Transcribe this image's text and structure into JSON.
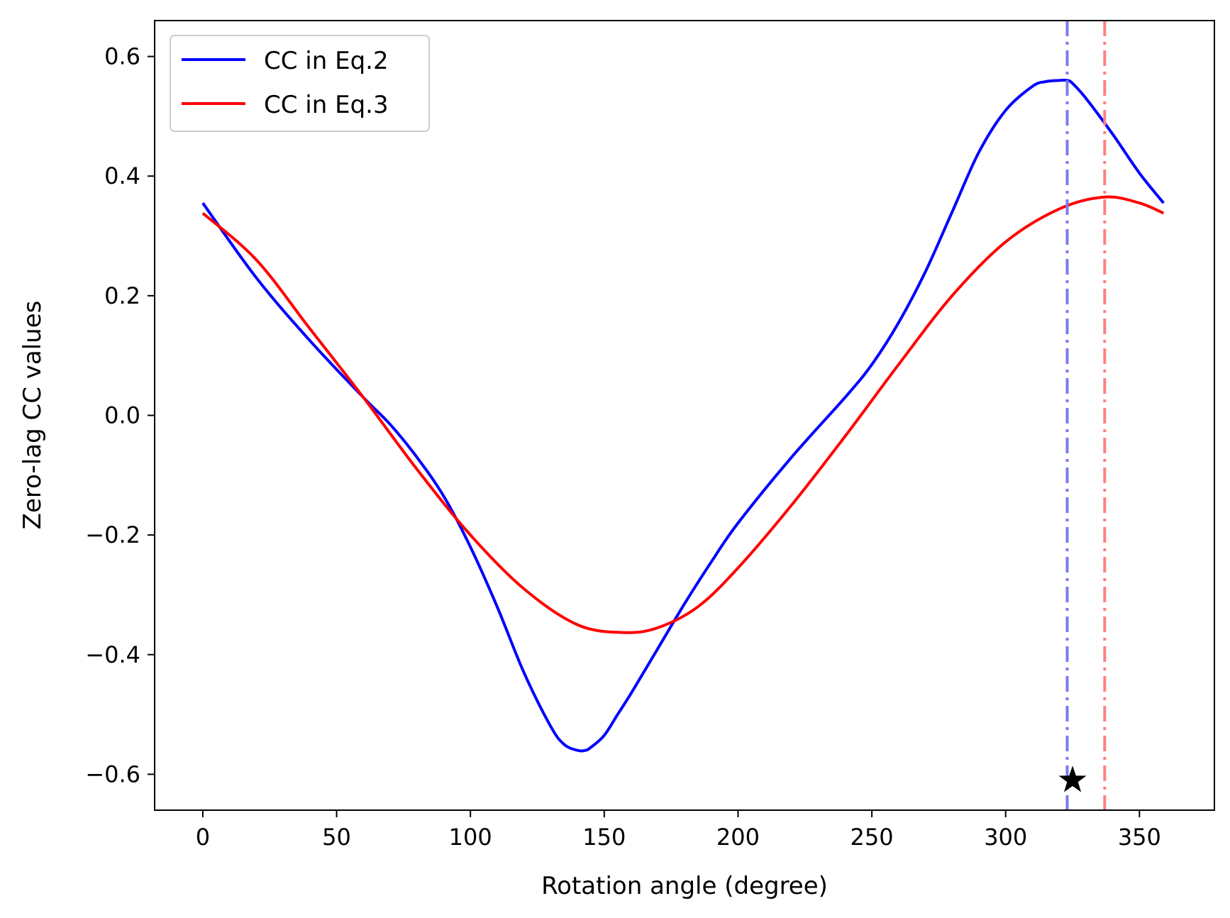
{
  "chart_data": {
    "type": "line",
    "title": "",
    "xlabel": "Rotation angle (degree)",
    "ylabel": "Zero-lag CC values",
    "xlim": [
      -18,
      378
    ],
    "ylim": [
      -0.66,
      0.66
    ],
    "xticks": [
      0,
      50,
      100,
      150,
      200,
      250,
      300,
      350
    ],
    "xtick_labels": [
      "0",
      "50",
      "100",
      "150",
      "200",
      "250",
      "300",
      "350"
    ],
    "yticks": [
      -0.6,
      -0.4,
      -0.2,
      0.0,
      0.2,
      0.4,
      0.6
    ],
    "ytick_labels": [
      "−0.6",
      "−0.4",
      "−0.2",
      "0.0",
      "0.2",
      "0.4",
      "0.6"
    ],
    "grid": false,
    "legend_position": "top-left",
    "series": [
      {
        "name": "CC in Eq.2",
        "color": "#0000ff",
        "x": [
          0,
          20,
          40,
          60,
          70,
          80,
          90,
          100,
          110,
          120,
          130,
          135,
          140,
          143,
          145,
          150,
          155,
          160,
          170,
          180,
          190,
          200,
          220,
          240,
          250,
          260,
          270,
          280,
          290,
          300,
          310,
          315,
          320,
          323,
          325,
          330,
          340,
          350,
          359
        ],
        "y": [
          0.355,
          0.23,
          0.125,
          0.03,
          -0.015,
          -0.07,
          -0.135,
          -0.22,
          -0.32,
          -0.43,
          -0.52,
          -0.55,
          -0.56,
          -0.56,
          -0.555,
          -0.535,
          -0.5,
          -0.465,
          -0.39,
          -0.315,
          -0.245,
          -0.18,
          -0.07,
          0.03,
          0.085,
          0.155,
          0.24,
          0.34,
          0.44,
          0.51,
          0.55,
          0.558,
          0.56,
          0.56,
          0.555,
          0.53,
          0.47,
          0.405,
          0.355
        ]
      },
      {
        "name": "CC in Eq.3",
        "color": "#ff0000",
        "x": [
          0,
          20,
          40,
          60,
          80,
          100,
          120,
          140,
          157,
          170,
          185,
          200,
          220,
          240,
          260,
          280,
          300,
          320,
          337,
          350,
          359
        ],
        "y": [
          0.338,
          0.26,
          0.145,
          0.03,
          -0.09,
          -0.2,
          -0.29,
          -0.35,
          -0.363,
          -0.355,
          -0.32,
          -0.255,
          -0.15,
          -0.035,
          0.085,
          0.2,
          0.29,
          0.345,
          0.365,
          0.355,
          0.338
        ]
      }
    ],
    "vertical_lines": [
      {
        "x": 323,
        "color": "#7b7bf0",
        "style": "dash-dot"
      },
      {
        "x": 337,
        "color": "#ff8080",
        "style": "dash-dot"
      }
    ],
    "markers": [
      {
        "x": 325,
        "y": -0.61,
        "symbol": "star",
        "color": "#000000"
      }
    ]
  }
}
